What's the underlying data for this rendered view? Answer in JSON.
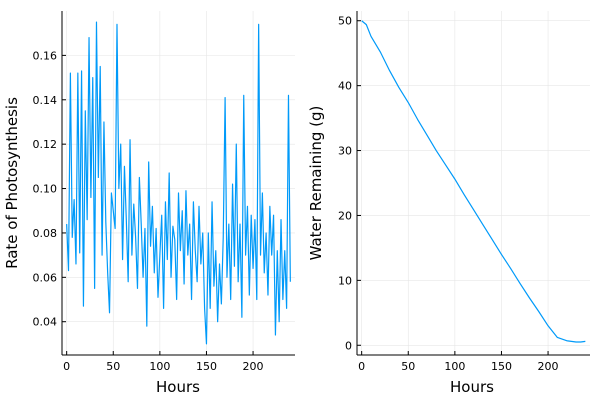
{
  "chart_data": [
    {
      "type": "line",
      "title": "",
      "xlabel": "Hours",
      "ylabel": "Rate of Photosynthesis",
      "xlim": [
        -5,
        245
      ],
      "ylim": [
        0.025,
        0.18
      ],
      "xticks": [
        0,
        50,
        100,
        150,
        200
      ],
      "xtick_labels": [
        "0",
        "50",
        "100",
        "150",
        "200"
      ],
      "yticks": [
        0.04,
        0.06,
        0.08,
        0.1,
        0.12,
        0.14,
        0.16
      ],
      "ytick_labels": [
        "0.04",
        "0.06",
        "0.08",
        "0.10",
        "0.12",
        "0.14",
        "0.16"
      ],
      "grid": true,
      "legend": "none",
      "series": [
        {
          "name": "y1",
          "color": "#009af9",
          "x": [
            0,
            2,
            4,
            6,
            8,
            10,
            12,
            14,
            16,
            18,
            20,
            22,
            24,
            26,
            28,
            30,
            32,
            34,
            36,
            38,
            40,
            42,
            44,
            46,
            48,
            50,
            52,
            54,
            56,
            58,
            60,
            62,
            64,
            66,
            68,
            70,
            72,
            74,
            76,
            78,
            80,
            82,
            84,
            86,
            88,
            90,
            92,
            94,
            96,
            98,
            100,
            102,
            104,
            106,
            108,
            110,
            112,
            114,
            116,
            118,
            120,
            122,
            124,
            126,
            128,
            130,
            132,
            134,
            136,
            138,
            140,
            142,
            144,
            146,
            148,
            150,
            152,
            154,
            156,
            158,
            160,
            162,
            164,
            166,
            168,
            170,
            172,
            174,
            176,
            178,
            180,
            182,
            184,
            186,
            188,
            190,
            192,
            194,
            196,
            198,
            200,
            202,
            204,
            206,
            208,
            210,
            212,
            214,
            216,
            218,
            220,
            222,
            224,
            226,
            228,
            230,
            232,
            234,
            236,
            238,
            240
          ],
          "values": [
            0.084,
            0.063,
            0.152,
            0.078,
            0.095,
            0.066,
            0.152,
            0.071,
            0.153,
            0.047,
            0.135,
            0.086,
            0.168,
            0.096,
            0.15,
            0.055,
            0.175,
            0.105,
            0.155,
            0.07,
            0.13,
            0.085,
            0.062,
            0.044,
            0.098,
            0.09,
            0.082,
            0.174,
            0.1,
            0.12,
            0.068,
            0.11,
            0.086,
            0.058,
            0.122,
            0.07,
            0.093,
            0.078,
            0.055,
            0.105,
            0.084,
            0.06,
            0.082,
            0.038,
            0.112,
            0.074,
            0.092,
            0.062,
            0.082,
            0.051,
            0.07,
            0.088,
            0.046,
            0.094,
            0.068,
            0.107,
            0.06,
            0.083,
            0.077,
            0.05,
            0.098,
            0.072,
            0.09,
            0.057,
            0.099,
            0.07,
            0.084,
            0.05,
            0.094,
            0.072,
            0.058,
            0.092,
            0.066,
            0.08,
            0.046,
            0.03,
            0.08,
            0.046,
            0.094,
            0.056,
            0.072,
            0.04,
            0.066,
            0.048,
            0.078,
            0.141,
            0.06,
            0.084,
            0.05,
            0.102,
            0.065,
            0.12,
            0.058,
            0.084,
            0.042,
            0.142,
            0.07,
            0.092,
            0.052,
            0.088,
            0.064,
            0.086,
            0.05,
            0.174,
            0.07,
            0.098,
            0.062,
            0.08,
            0.052,
            0.092,
            0.07,
            0.088,
            0.034,
            0.072,
            0.04,
            0.086,
            0.05,
            0.072,
            0.046,
            0.142,
            0.058
          ]
        }
      ]
    },
    {
      "type": "line",
      "title": "",
      "xlabel": "Hours",
      "ylabel": "Water Remaining (g)",
      "xlim": [
        -5,
        245
      ],
      "ylim": [
        -1.5,
        51.5
      ],
      "xticks": [
        0,
        50,
        100,
        150,
        200
      ],
      "xtick_labels": [
        "0",
        "50",
        "100",
        "150",
        "200"
      ],
      "yticks": [
        0,
        10,
        20,
        30,
        40,
        50
      ],
      "ytick_labels": [
        "0",
        "10",
        "20",
        "30",
        "40",
        "50"
      ],
      "grid": true,
      "legend": "none",
      "series": [
        {
          "name": "y1",
          "color": "#009af9",
          "x": [
            0,
            5,
            10,
            20,
            30,
            40,
            50,
            60,
            70,
            80,
            90,
            100,
            110,
            120,
            130,
            140,
            150,
            160,
            170,
            180,
            190,
            200,
            210,
            220,
            225,
            230,
            235,
            240
          ],
          "values": [
            50.0,
            49.4,
            47.6,
            45.2,
            42.3,
            39.7,
            37.4,
            34.8,
            32.4,
            30.0,
            27.8,
            25.6,
            23.2,
            20.9,
            18.6,
            16.3,
            14.0,
            11.8,
            9.5,
            7.3,
            5.2,
            3.0,
            1.2,
            0.7,
            0.6,
            0.5,
            0.5,
            0.6
          ]
        }
      ]
    }
  ]
}
